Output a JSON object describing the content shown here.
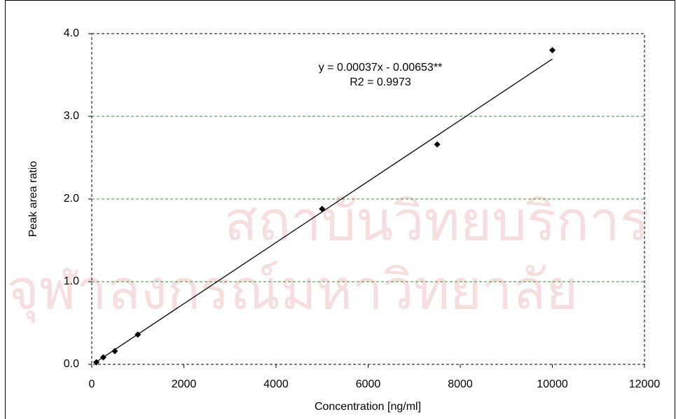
{
  "chart_data": {
    "type": "scatter",
    "watermark": [
      "สถาบันวิทยบริการ",
      "จุฬาลงกรณ์มหาวิทยาลัย"
    ],
    "x_label": "Concentration [ng/ml]",
    "y_label": "Peak area ratio",
    "annotation": [
      "y = 0.00037x - 0.00653**",
      "R2 = 0.9973"
    ],
    "series": [
      {
        "color": "#000000",
        "x": [
          100,
          250,
          500,
          1000,
          5000,
          7500,
          10000
        ],
        "values": [
          0.025,
          0.085,
          0.16,
          0.36,
          1.88,
          2.66,
          3.8
        ]
      }
    ],
    "trendline": {
      "slope": 0.00037,
      "intercept": -0.00653,
      "x": [
        100,
        10000
      ],
      "color": "#000000"
    },
    "xlim": [
      0,
      12000
    ],
    "xticks": [
      0,
      2000,
      4000,
      6000,
      8000,
      10000,
      12000
    ],
    "ylim": [
      0,
      4
    ],
    "yticks": [
      {
        "value": 0,
        "label": "0.0"
      },
      {
        "value": 1,
        "label": "1.0"
      },
      {
        "value": 2,
        "label": "2.0"
      },
      {
        "value": 3,
        "label": "3.0"
      },
      {
        "value": 4,
        "label": "4.0"
      }
    ],
    "grid": true,
    "grid_color": "#2a9a2a"
  }
}
